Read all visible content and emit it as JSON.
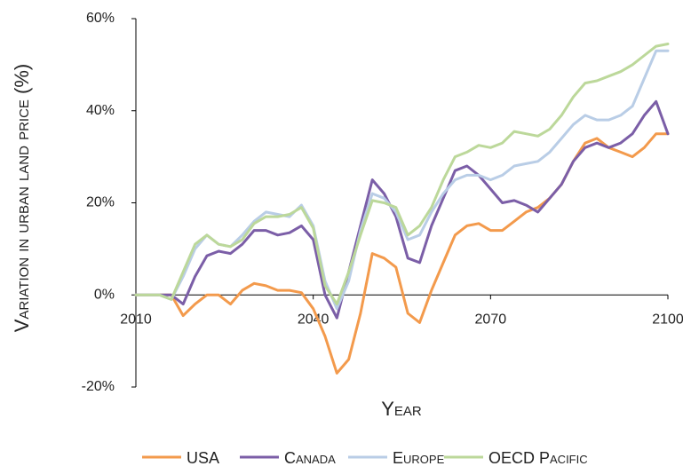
{
  "chart_data": {
    "type": "line",
    "x_label": "Year",
    "y_label": "Variation in urban land price (%)",
    "x": [
      2010,
      2012,
      2014,
      2016,
      2018,
      2020,
      2022,
      2024,
      2026,
      2028,
      2030,
      2032,
      2034,
      2036,
      2038,
      2040,
      2042,
      2044,
      2046,
      2048,
      2050,
      2052,
      2054,
      2056,
      2058,
      2060,
      2062,
      2064,
      2066,
      2068,
      2070,
      2072,
      2074,
      2076,
      2078,
      2080,
      2082,
      2084,
      2086,
      2088,
      2090,
      2092,
      2094,
      2096,
      2098,
      2100
    ],
    "xlim": [
      2010,
      2100
    ],
    "xticks": [
      2010,
      2040,
      2070,
      2100
    ],
    "ylim": [
      -20,
      60
    ],
    "yticks": [
      {
        "value": -20,
        "label": "-20%"
      },
      {
        "value": 0,
        "label": "0%"
      },
      {
        "value": 20,
        "label": "20%"
      },
      {
        "value": 40,
        "label": "40%"
      },
      {
        "value": 60,
        "label": "60%"
      }
    ],
    "grid": false,
    "legend": "bottom",
    "series": [
      {
        "name": "USA",
        "color": "#f39a4c",
        "values": [
          0,
          0,
          0,
          0,
          -4.5,
          -2,
          0,
          0,
          -2,
          1,
          2.5,
          2,
          1,
          1,
          0.5,
          -3,
          -9,
          -17,
          -14,
          -4,
          9,
          8,
          6,
          -4,
          -6,
          1,
          7,
          13,
          15,
          15.5,
          14,
          14,
          16,
          18,
          19,
          21,
          24,
          29,
          33,
          34,
          32,
          31,
          30,
          32,
          35,
          35
        ]
      },
      {
        "name": "Canada",
        "color": "#7b5ea7",
        "values": [
          0,
          0,
          0,
          0,
          -2,
          4,
          8.5,
          9.5,
          9,
          11,
          14,
          14,
          13,
          13.5,
          15,
          12,
          0,
          -5,
          5,
          15,
          25,
          22,
          17,
          8,
          7,
          15,
          21,
          27,
          28,
          26,
          23,
          20,
          20.5,
          19.5,
          18,
          21,
          24,
          29,
          32,
          33,
          32,
          33,
          35,
          39,
          42,
          35
        ]
      },
      {
        "name": "Europe",
        "color": "#b9cde6",
        "values": [
          0,
          0,
          0,
          -1,
          4,
          10,
          13,
          11,
          10.5,
          13,
          16,
          18,
          17.5,
          17,
          19.5,
          15,
          3,
          -3,
          3,
          14,
          22,
          21,
          18,
          12,
          13,
          18,
          22,
          25,
          26,
          26,
          25,
          26,
          28,
          28.5,
          29,
          31,
          34,
          37,
          39,
          38,
          38,
          39,
          41,
          47,
          53,
          53
        ]
      },
      {
        "name": "OECD Pacific",
        "color": "#bcd89a",
        "values": [
          0,
          0,
          0,
          -1,
          5,
          11,
          13,
          11,
          10.5,
          12,
          15.5,
          17,
          17,
          17.5,
          19,
          14.5,
          2,
          -2,
          5,
          13,
          20.5,
          20,
          19,
          13,
          15,
          19,
          25,
          30,
          31,
          32.5,
          32,
          33,
          35.5,
          35,
          34.5,
          36,
          39,
          43,
          46,
          46.5,
          47.5,
          48.5,
          50,
          52,
          54,
          54.5
        ]
      }
    ]
  }
}
